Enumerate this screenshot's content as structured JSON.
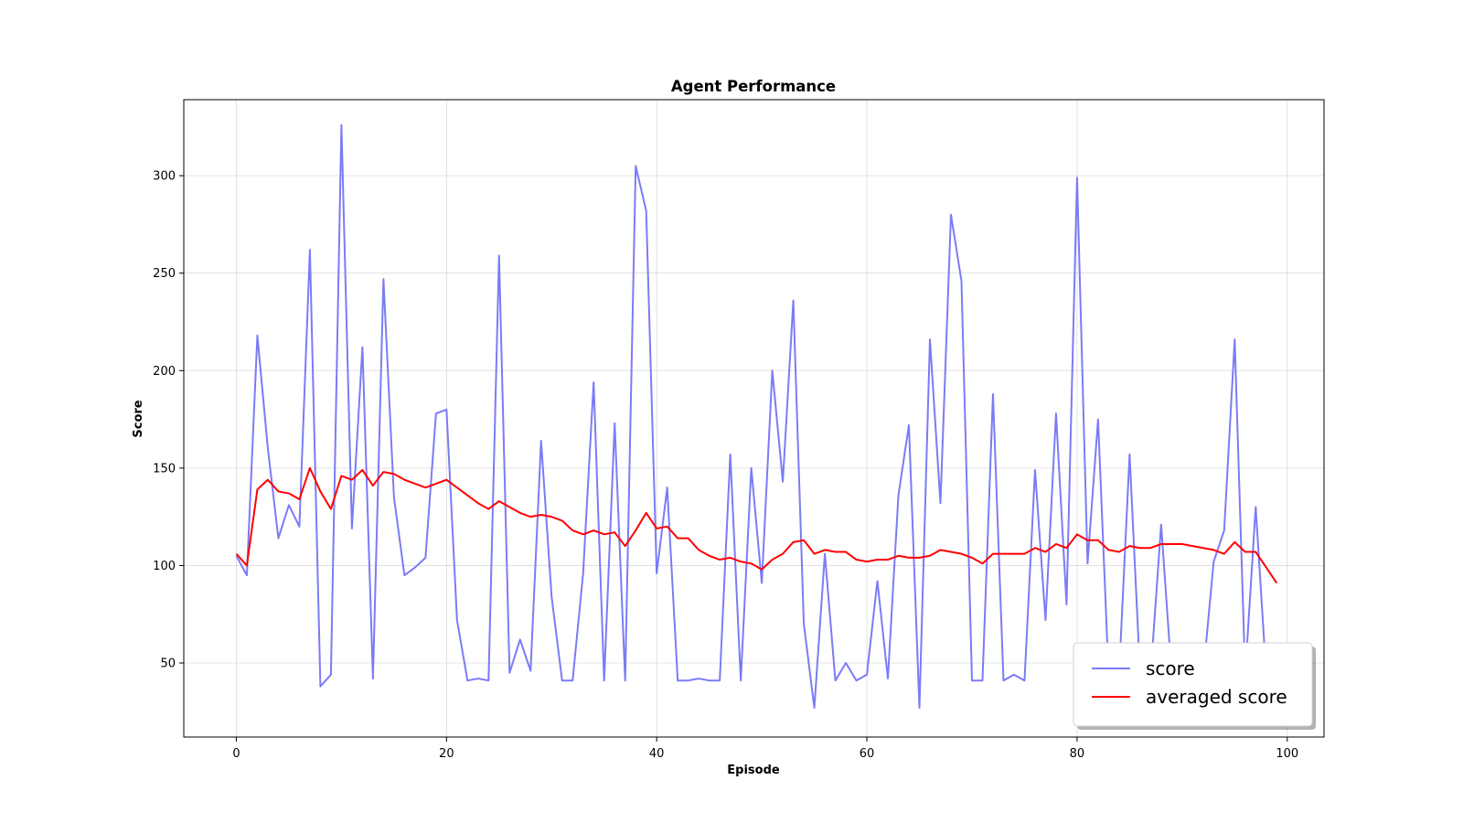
{
  "chart_data": {
    "type": "line",
    "title": "Agent Performance",
    "xlabel": "Episode",
    "ylabel": "Score",
    "xlim": [
      -5,
      103.5
    ],
    "ylim": [
      12,
      339
    ],
    "xticks": [
      0,
      20,
      40,
      60,
      80,
      100
    ],
    "yticks": [
      50,
      100,
      150,
      200,
      250,
      300
    ],
    "grid": true,
    "legend": {
      "placement": "lower-right"
    },
    "x": [
      0,
      1,
      2,
      3,
      4,
      5,
      6,
      7,
      8,
      9,
      10,
      11,
      12,
      13,
      14,
      15,
      16,
      17,
      18,
      19,
      20,
      21,
      22,
      23,
      24,
      25,
      26,
      27,
      28,
      29,
      30,
      31,
      32,
      33,
      34,
      35,
      36,
      37,
      38,
      39,
      40,
      41,
      42,
      43,
      44,
      45,
      46,
      47,
      48,
      49,
      50,
      51,
      52,
      53,
      54,
      55,
      56,
      57,
      58,
      59,
      60,
      61,
      62,
      63,
      64,
      65,
      66,
      67,
      68,
      69,
      70,
      71,
      72,
      73,
      74,
      75,
      76,
      77,
      78,
      79,
      80,
      81,
      82,
      83,
      84,
      85,
      86,
      87,
      88,
      89,
      90,
      91,
      92,
      93,
      94,
      95,
      96,
      97,
      98,
      99
    ],
    "series": [
      {
        "name": "score",
        "color": "#7b7bf7",
        "values": [
          105,
          95,
          218,
          160,
          114,
          131,
          120,
          262,
          38,
          44,
          326,
          119,
          212,
          42,
          247,
          135,
          95,
          99,
          104,
          178,
          180,
          72,
          41,
          42,
          41,
          259,
          45,
          62,
          46,
          164,
          84,
          41,
          41,
          96,
          194,
          41,
          173,
          41,
          305,
          282,
          96,
          140,
          41,
          41,
          42,
          41,
          41,
          157,
          41,
          150,
          91,
          200,
          143,
          236,
          70,
          27,
          106,
          41,
          50,
          41,
          44,
          92,
          42,
          136,
          172,
          27,
          216,
          132,
          280,
          246,
          41,
          41,
          188,
          41,
          44,
          41,
          149,
          72,
          178,
          80,
          299,
          101,
          175,
          44,
          44,
          157,
          44,
          44,
          121,
          44,
          44,
          44,
          44,
          102,
          118,
          216,
          44,
          130,
          44,
          44
        ]
      },
      {
        "name": "averaged score",
        "color": "#ff0000",
        "values": [
          106,
          100,
          139,
          144,
          138,
          137,
          134,
          150,
          138,
          129,
          146,
          144,
          149,
          141,
          148,
          147,
          144,
          142,
          140,
          142,
          144,
          140,
          136,
          132,
          129,
          133,
          130,
          127,
          125,
          126,
          125,
          123,
          118,
          116,
          118,
          116,
          117,
          110,
          118,
          127,
          119,
          120,
          114,
          114,
          108,
          105,
          103,
          104,
          102,
          101,
          98,
          103,
          106,
          112,
          113,
          106,
          108,
          107,
          107,
          103,
          102,
          103,
          103,
          105,
          104,
          104,
          105,
          108,
          107,
          106,
          104,
          101,
          106,
          106,
          106,
          106,
          109,
          107,
          111,
          109,
          116,
          113,
          113,
          108,
          107,
          110,
          109,
          109,
          111,
          111,
          111,
          110,
          109,
          108,
          106,
          112,
          107,
          107,
          99,
          91
        ]
      }
    ]
  }
}
